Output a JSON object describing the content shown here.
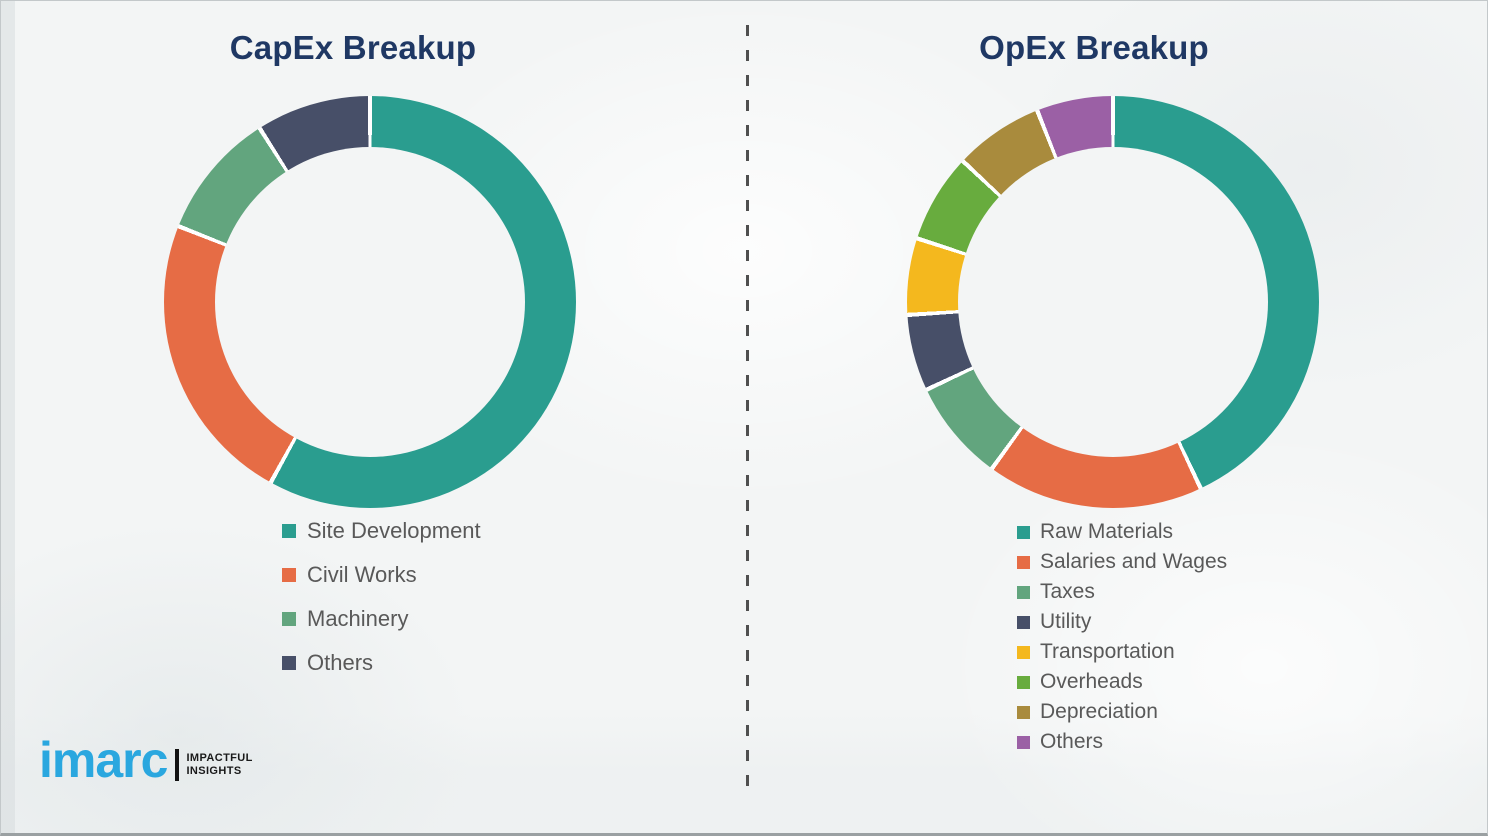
{
  "page": {
    "background_color": "#F3F5F5",
    "divider_style": "vertical dashed line",
    "divider_color": "#4f4f4f",
    "title_color": "#1F3864",
    "legend_text_color": "#595959"
  },
  "chart_data": [
    {
      "type": "pie",
      "subtype": "donut",
      "title": "CapEx Breakup",
      "labels": [
        "Site Development",
        "Civil Works",
        "Machinery",
        "Others"
      ],
      "values": [
        58,
        23,
        10,
        9
      ],
      "colors": [
        "#2A9D8F",
        "#E66C45",
        "#62A57E",
        "#474F68"
      ],
      "start_angle": "top",
      "direction": "clockwise",
      "donut_hole_pct": 76,
      "legend_position": "below-left",
      "values_note": "percent share estimated from arc angles"
    },
    {
      "type": "pie",
      "subtype": "donut",
      "title": "OpEx Breakup",
      "labels": [
        "Raw Materials",
        "Salaries and Wages",
        "Taxes",
        "Utility",
        "Transportation",
        "Overheads",
        "Depreciation",
        "Others"
      ],
      "values": [
        43,
        17,
        8,
        6,
        6,
        7,
        7,
        6
      ],
      "colors": [
        "#2A9D8F",
        "#E66C45",
        "#62A57E",
        "#474F68",
        "#F4B81E",
        "#68AC3E",
        "#A98B3D",
        "#9B60A5"
      ],
      "start_angle": "top",
      "direction": "clockwise",
      "donut_hole_pct": 76,
      "legend_position": "below-left",
      "values_note": "percent share estimated from arc angles"
    }
  ],
  "branding": {
    "logo_text": "imarc",
    "logo_color": "#2AA7DF",
    "tagline_line1": "IMPACTFUL",
    "tagline_line2": "INSIGHTS"
  }
}
